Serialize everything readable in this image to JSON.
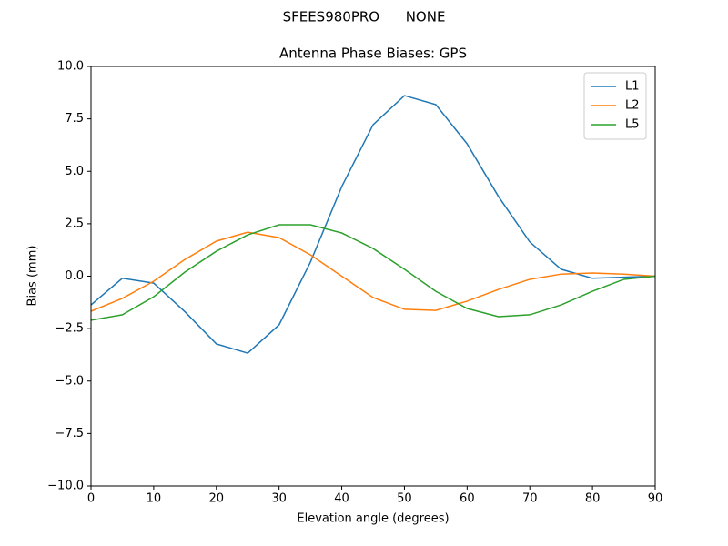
{
  "chart_data": {
    "type": "line",
    "suptitle": "SFEES980PRO      NONE",
    "title": "Antenna Phase Biases: GPS",
    "xlabel": "Elevation angle (degrees)",
    "ylabel": "Bias (mm)",
    "x": [
      0,
      5,
      10,
      15,
      20,
      25,
      30,
      35,
      40,
      45,
      50,
      55,
      60,
      65,
      70,
      75,
      80,
      85,
      90
    ],
    "series": [
      {
        "name": "L1",
        "color": "#1f77b4",
        "values": [
          -1.37,
          -0.1,
          -0.33,
          -1.7,
          -3.23,
          -3.67,
          -2.32,
          0.67,
          4.27,
          7.22,
          8.61,
          8.18,
          6.31,
          3.8,
          1.63,
          0.33,
          -0.1,
          -0.05,
          0
        ]
      },
      {
        "name": "L2",
        "color": "#ff7f0e",
        "values": [
          -1.67,
          -1.06,
          -0.24,
          0.8,
          1.67,
          2.1,
          1.84,
          1.02,
          0.0,
          -1.02,
          -1.58,
          -1.63,
          -1.19,
          -0.63,
          -0.15,
          0.1,
          0.15,
          0.1,
          0
        ]
      },
      {
        "name": "L5",
        "color": "#2ca02c",
        "values": [
          -2.1,
          -1.84,
          -0.98,
          0.2,
          1.19,
          1.97,
          2.45,
          2.45,
          2.06,
          1.32,
          0.33,
          -0.72,
          -1.54,
          -1.93,
          -1.84,
          -1.37,
          -0.72,
          -0.15,
          0
        ]
      }
    ],
    "xlim": [
      0,
      90
    ],
    "xticks": [
      0,
      10,
      20,
      30,
      40,
      50,
      60,
      70,
      80,
      90
    ],
    "ylim": [
      -10,
      10
    ],
    "yticks": [
      {
        "value": -10,
        "label": "−10.0"
      },
      {
        "value": -7.5,
        "label": "−7.5"
      },
      {
        "value": -5,
        "label": "−5.0"
      },
      {
        "value": -2.5,
        "label": "−2.5"
      },
      {
        "value": 0,
        "label": "0.0"
      },
      {
        "value": 2.5,
        "label": "2.5"
      },
      {
        "value": 5,
        "label": "5.0"
      },
      {
        "value": 7.5,
        "label": "7.5"
      },
      {
        "value": 10,
        "label": "10.0"
      }
    ],
    "grid": false,
    "legend": "upper right"
  }
}
